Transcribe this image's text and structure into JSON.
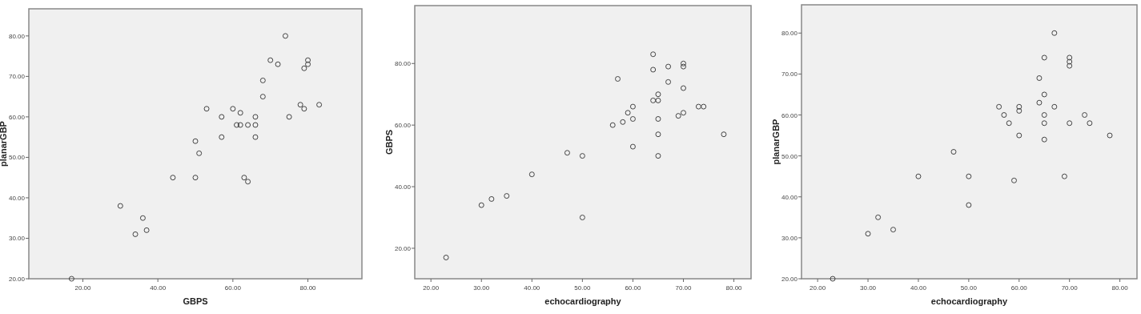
{
  "chart_data": [
    {
      "type": "scatter",
      "xlabel": "GBPS",
      "ylabel": "planarGBP",
      "xlim": [
        5.6,
        94.4
      ],
      "ylim": [
        20,
        86.7
      ],
      "xticks": [
        {
          "value": 20,
          "label": "20.00"
        },
        {
          "value": 40,
          "label": "40.00"
        },
        {
          "value": 60,
          "label": "60.00"
        },
        {
          "value": 80,
          "label": "80.00"
        }
      ],
      "yticks": [
        {
          "value": 20,
          "label": "20.00"
        },
        {
          "value": 30,
          "label": "30.00"
        },
        {
          "value": 40,
          "label": "40.00"
        },
        {
          "value": 50,
          "label": "50.00"
        },
        {
          "value": 60,
          "label": "60.00"
        },
        {
          "value": 70,
          "label": "70.00"
        },
        {
          "value": 80,
          "label": "80.00"
        }
      ],
      "grid": false,
      "marker": "circle",
      "series": [
        {
          "color": "#444444",
          "x": [
            17,
            30,
            36,
            34,
            37,
            44,
            50,
            50,
            51,
            53,
            57,
            57,
            60,
            61,
            62,
            62,
            63,
            64,
            64,
            66,
            66,
            66,
            68,
            68,
            70,
            72,
            74,
            75,
            78,
            79,
            79,
            80,
            80,
            83
          ],
          "values": [
            20,
            38,
            35,
            31,
            32,
            45,
            45,
            54,
            51,
            62,
            60,
            55,
            62,
            58,
            58,
            61,
            45,
            44,
            58,
            60,
            58,
            55,
            69,
            65,
            74,
            73,
            80,
            60,
            63,
            62,
            72,
            74,
            73,
            63
          ]
        }
      ]
    },
    {
      "type": "scatter",
      "xlabel": "echocardiography",
      "ylabel": "GBPS",
      "xlim": [
        16.8,
        83.4
      ],
      "ylim": [
        10.1,
        98.8
      ],
      "xticks": [
        {
          "value": 20,
          "label": "20.00"
        },
        {
          "value": 30,
          "label": "30.00"
        },
        {
          "value": 40,
          "label": "40.00"
        },
        {
          "value": 50,
          "label": "50.00"
        },
        {
          "value": 60,
          "label": "60.00"
        },
        {
          "value": 70,
          "label": "70.00"
        },
        {
          "value": 80,
          "label": "80.00"
        }
      ],
      "yticks": [
        {
          "value": 20,
          "label": "20.00"
        },
        {
          "value": 40,
          "label": "40.00"
        },
        {
          "value": 60,
          "label": "60.00"
        },
        {
          "value": 80,
          "label": "80.00"
        }
      ],
      "grid": false,
      "marker": "circle",
      "series": [
        {
          "color": "#444444",
          "x": [
            23,
            30,
            32,
            35,
            40,
            47,
            50,
            50,
            56,
            57,
            58,
            59,
            60,
            60,
            60,
            64,
            64,
            64,
            65,
            65,
            65,
            65,
            65,
            67,
            67,
            69,
            70,
            70,
            70,
            70,
            73,
            74,
            78
          ],
          "values": [
            17,
            34,
            36,
            37,
            44,
            51,
            50,
            30,
            60,
            75,
            61,
            64,
            66,
            62,
            53,
            83,
            78,
            68,
            70,
            68,
            62,
            57,
            50,
            79,
            74,
            63,
            80,
            79,
            72,
            64,
            66,
            66,
            57
          ]
        }
      ]
    },
    {
      "type": "scatter",
      "xlabel": "echocardiography",
      "ylabel": "planarGBP",
      "xlim": [
        16.8,
        83.4
      ],
      "ylim": [
        20,
        86.9
      ],
      "xticks": [
        {
          "value": 20,
          "label": "20.00"
        },
        {
          "value": 30,
          "label": "30.00"
        },
        {
          "value": 40,
          "label": "40.00"
        },
        {
          "value": 50,
          "label": "50.00"
        },
        {
          "value": 60,
          "label": "60.00"
        },
        {
          "value": 70,
          "label": "70.00"
        },
        {
          "value": 80,
          "label": "80.00"
        }
      ],
      "yticks": [
        {
          "value": 20,
          "label": "20.00"
        },
        {
          "value": 30,
          "label": "30.00"
        },
        {
          "value": 40,
          "label": "40.00"
        },
        {
          "value": 50,
          "label": "50.00"
        },
        {
          "value": 60,
          "label": "60.00"
        },
        {
          "value": 70,
          "label": "70.00"
        },
        {
          "value": 80,
          "label": "80.00"
        }
      ],
      "grid": false,
      "marker": "circle",
      "series": [
        {
          "color": "#444444",
          "x": [
            23,
            30,
            32,
            35,
            40,
            47,
            50,
            50,
            56,
            57,
            58,
            59,
            60,
            60,
            60,
            64,
            64,
            65,
            65,
            65,
            65,
            65,
            67,
            67,
            69,
            70,
            70,
            70,
            70,
            73,
            74,
            78
          ],
          "values": [
            20,
            31,
            35,
            32,
            45,
            51,
            45,
            38,
            62,
            60,
            58,
            44,
            62,
            61,
            55,
            69,
            63,
            74,
            65,
            60,
            58,
            54,
            80,
            62,
            45,
            74,
            73,
            72,
            58,
            60,
            58,
            55
          ]
        }
      ]
    }
  ]
}
